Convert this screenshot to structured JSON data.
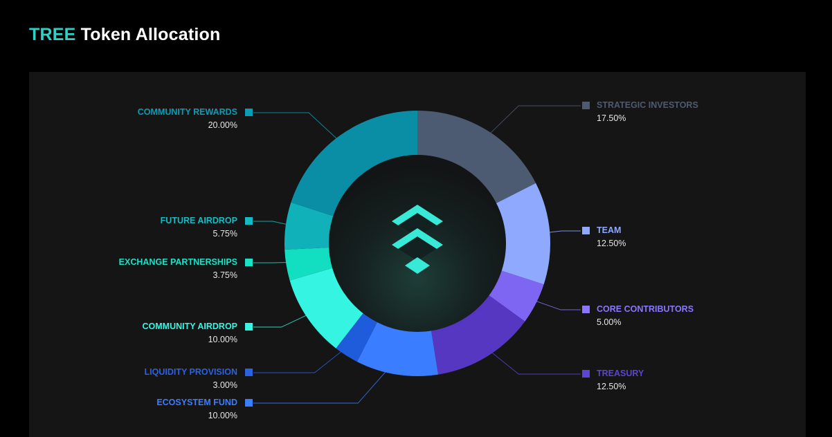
{
  "header": {
    "title_accent": "TREE",
    "title_rest": "Token Allocation"
  },
  "chart_data": {
    "type": "pie",
    "title": "TREE Token Allocation",
    "center_icon": "tree-logo-icon",
    "slices": [
      {
        "label": "STRATEGIC INVESTORS",
        "value": 17.5,
        "display": "17.50%",
        "color": "#4d5b72",
        "label_color": "#4d5b72",
        "side": "right"
      },
      {
        "label": "TEAM",
        "value": 12.5,
        "display": "12.50%",
        "color": "#8fa9ff",
        "label_color": "#8fa9ff",
        "side": "right"
      },
      {
        "label": "CORE CONTRIBUTORS",
        "value": 5.0,
        "display": "5.00%",
        "color": "#7f66f2",
        "label_color": "#8a77ff",
        "side": "right"
      },
      {
        "label": "TREASURY",
        "value": 12.5,
        "display": "12.50%",
        "color": "#5637c2",
        "label_color": "#5a45d4",
        "side": "right"
      },
      {
        "label": "ECOSYSTEM FUND",
        "value": 10.0,
        "display": "10.00%",
        "color": "#3a7dff",
        "label_color": "#3a7dff",
        "side": "left"
      },
      {
        "label": "LIQUIDITY PROVISION",
        "value": 3.0,
        "display": "3.00%",
        "color": "#1f5cdc",
        "label_color": "#2a62e0",
        "side": "left"
      },
      {
        "label": "COMMUNITY AIRDROP",
        "value": 10.0,
        "display": "10.00%",
        "color": "#35f5e2",
        "label_color": "#35f5e2",
        "side": "left"
      },
      {
        "label": "EXCHANGE PARTNERSHIPS",
        "value": 3.75,
        "display": "3.75%",
        "color": "#12dfc1",
        "label_color": "#18e3c6",
        "side": "left"
      },
      {
        "label": "FUTURE AIRDROP",
        "value": 5.75,
        "display": "5.75%",
        "color": "#10b1b8",
        "label_color": "#14bcc2",
        "side": "left"
      },
      {
        "label": "COMMUNITY REWARDS",
        "value": 20.0,
        "display": "20.00%",
        "color": "#0a8ea6",
        "label_color": "#0a9db6",
        "side": "left"
      }
    ],
    "legend_placement": "around"
  }
}
